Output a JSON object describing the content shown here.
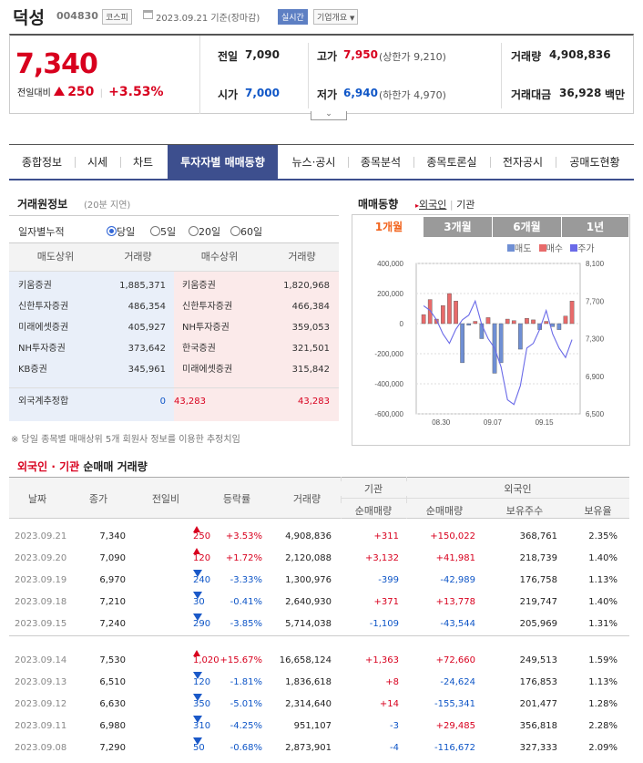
{
  "header": {
    "name": "덕성",
    "code": "004830",
    "market": "코스피",
    "date": "2023.09.21 기준(장마감)",
    "live": "실시간",
    "corp_info": "기업개요"
  },
  "price": {
    "current": "7,340",
    "prev_label": "전일대비",
    "change": "250",
    "change_pct": "+3.53%"
  },
  "stats": {
    "prev_close_label": "전일",
    "prev_close": "7,090",
    "high_label": "고가",
    "high": "7,950",
    "upper_limit": "(상한가 9,210)",
    "volume_label": "거래량",
    "volume": "4,908,836",
    "open_label": "시가",
    "open": "7,000",
    "low_label": "저가",
    "low": "6,940",
    "lower_limit": "(하한가 4,970)",
    "amount_label": "거래대금",
    "amount": "36,928",
    "amount_unit": "백만"
  },
  "tabs": [
    "종합정보",
    "시세",
    "차트",
    "투자자별 매매동향",
    "뉴스·공시",
    "종목분석",
    "종목토론실",
    "전자공시",
    "공매도현황"
  ],
  "broker": {
    "title": "거래원정보",
    "delay": "(20분 지연)",
    "filter_label": "일자별누적",
    "options": [
      "당일",
      "5일",
      "20일",
      "60일"
    ],
    "headers": [
      "매도상위",
      "거래량",
      "매수상위",
      "거래량"
    ],
    "sell": [
      {
        "name": "키움증권",
        "vol": "1,885,371"
      },
      {
        "name": "신한투자증권",
        "vol": "486,354"
      },
      {
        "name": "미래에셋증권",
        "vol": "405,927"
      },
      {
        "name": "NH투자증권",
        "vol": "373,642"
      },
      {
        "name": "KB증권",
        "vol": "345,961"
      }
    ],
    "buy": [
      {
        "name": "키움증권",
        "vol": "1,820,968"
      },
      {
        "name": "신한투자증권",
        "vol": "466,384"
      },
      {
        "name": "NH투자증권",
        "vol": "359,053"
      },
      {
        "name": "한국증권",
        "vol": "321,501"
      },
      {
        "name": "미래에셋증권",
        "vol": "315,842"
      }
    ],
    "foreign_label": "외국계추정합",
    "foreign_sell": "0",
    "foreign_buy": "43,283",
    "foreign_net": "43,283",
    "footnote": "※ 당일 종목별 매매상위 5개 회원사 정보를 이용한 추정치임"
  },
  "trend": {
    "title": "매매동향",
    "link_foreign": "외국인",
    "link_inst": "기관",
    "periods": [
      "1개월",
      "3개월",
      "6개월",
      "1년"
    ],
    "legend": [
      "매도",
      "매수",
      "주가"
    ]
  },
  "chart_data": {
    "type": "bar",
    "left_axis": {
      "ticks": [
        "400,000",
        "200,000",
        "0",
        "-200,000",
        "-400,000",
        "-600,000"
      ],
      "ylim": [
        -600000,
        400000
      ]
    },
    "right_axis": {
      "ticks": [
        "8,100",
        "7,700",
        "7,300",
        "6,900",
        "6,500"
      ],
      "ylim": [
        6500,
        8100
      ]
    },
    "x_ticks": [
      "08.30",
      "09.07",
      "09.15"
    ],
    "series": [
      {
        "name": "순매매",
        "values": [
          60000,
          160000,
          30000,
          120000,
          200000,
          150000,
          -260000,
          -10000,
          15000,
          -100000,
          40000,
          -330000,
          -260000,
          30000,
          20000,
          -170000,
          35000,
          25000,
          -40000,
          15000,
          -20000,
          -40000,
          50000,
          150000
        ]
      },
      {
        "name": "주가",
        "values": [
          7650,
          7600,
          7500,
          7350,
          7250,
          7400,
          7500,
          7550,
          7700,
          7450,
          7300,
          7200,
          7000,
          6650,
          6600,
          6800,
          7200,
          7250,
          7400,
          7600,
          7350,
          7200,
          7100,
          7290
        ]
      }
    ],
    "colors": {
      "sell": "#6f8fd4",
      "buy": "#e86a6a",
      "price": "#6a6ae8"
    }
  },
  "net": {
    "title_foreign": "외국인",
    "title_dot": "·",
    "title_inst": "기관",
    "title_rest": "순매매 거래량",
    "headers": {
      "date": "날짜",
      "close": "종가",
      "diff": "전일비",
      "rate": "등락률",
      "volume": "거래량",
      "inst": "기관",
      "foreign": "외국인",
      "inst_net": "순매매량",
      "for_net": "순매매량",
      "hold": "보유주수",
      "ratio": "보유율"
    },
    "rows": [
      {
        "date": "2023.09.21",
        "close": "7,340",
        "diff": "250",
        "dir": "up",
        "rate": "+3.53%",
        "vol": "4,908,836",
        "inst": "+311",
        "for": "+150,022",
        "hold": "368,761",
        "ratio": "2.35%"
      },
      {
        "date": "2023.09.20",
        "close": "7,090",
        "diff": "120",
        "dir": "up",
        "rate": "+1.72%",
        "vol": "2,120,088",
        "inst": "+3,132",
        "for": "+41,981",
        "hold": "218,739",
        "ratio": "1.40%"
      },
      {
        "date": "2023.09.19",
        "close": "6,970",
        "diff": "240",
        "dir": "down",
        "rate": "-3.33%",
        "vol": "1,300,976",
        "inst": "-399",
        "for": "-42,989",
        "hold": "176,758",
        "ratio": "1.13%"
      },
      {
        "date": "2023.09.18",
        "close": "7,210",
        "diff": "30",
        "dir": "down",
        "rate": "-0.41%",
        "vol": "2,640,930",
        "inst": "+371",
        "for": "+13,778",
        "hold": "219,747",
        "ratio": "1.40%"
      },
      {
        "date": "2023.09.15",
        "close": "7,240",
        "diff": "290",
        "dir": "down",
        "rate": "-3.85%",
        "vol": "5,714,038",
        "inst": "-1,109",
        "for": "-43,544",
        "hold": "205,969",
        "ratio": "1.31%"
      },
      {
        "date": "2023.09.14",
        "close": "7,530",
        "diff": "1,020",
        "dir": "up",
        "rate": "+15.67%",
        "vol": "16,658,124",
        "inst": "+1,363",
        "for": "+72,660",
        "hold": "249,513",
        "ratio": "1.59%"
      },
      {
        "date": "2023.09.13",
        "close": "6,510",
        "diff": "120",
        "dir": "down",
        "rate": "-1.81%",
        "vol": "1,836,618",
        "inst": "+8",
        "for": "-24,624",
        "hold": "176,853",
        "ratio": "1.13%"
      },
      {
        "date": "2023.09.12",
        "close": "6,630",
        "diff": "350",
        "dir": "down",
        "rate": "-5.01%",
        "vol": "2,314,640",
        "inst": "+14",
        "for": "-155,341",
        "hold": "201,477",
        "ratio": "1.28%"
      },
      {
        "date": "2023.09.11",
        "close": "6,980",
        "diff": "310",
        "dir": "down",
        "rate": "-4.25%",
        "vol": "951,107",
        "inst": "-3",
        "for": "+29,485",
        "hold": "356,818",
        "ratio": "2.28%"
      },
      {
        "date": "2023.09.08",
        "close": "7,290",
        "diff": "50",
        "dir": "down",
        "rate": "-0.68%",
        "vol": "2,873,901",
        "inst": "-4",
        "for": "-116,672",
        "hold": "327,333",
        "ratio": "2.09%"
      }
    ]
  }
}
